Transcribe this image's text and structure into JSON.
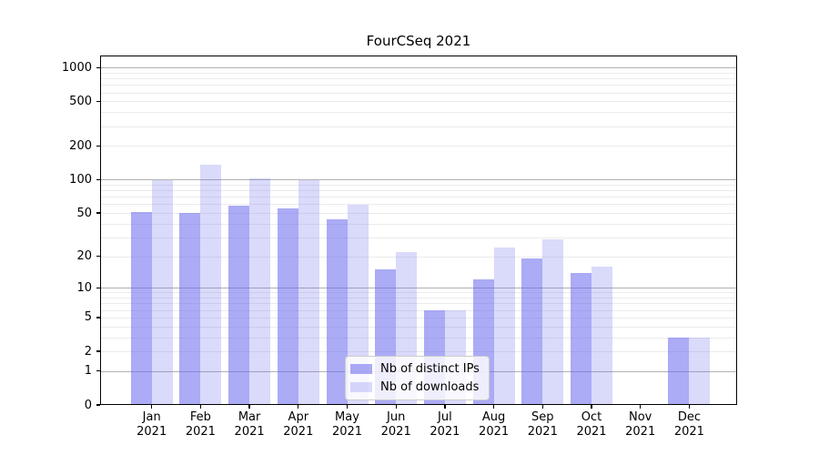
{
  "chart_data": {
    "type": "bar",
    "title": "FourCSeq 2021",
    "categories": [
      "Jan",
      "Feb",
      "Mar",
      "Apr",
      "May",
      "Jun",
      "Jul",
      "Aug",
      "Sep",
      "Oct",
      "Nov",
      "Dec"
    ],
    "category_year": "2021",
    "series": [
      {
        "name": "Nb of distinct IPs",
        "color": "rgba(102,102,238,0.55)",
        "values": [
          51,
          50,
          58,
          55,
          44,
          15,
          6,
          12,
          19,
          14,
          0,
          3
        ]
      },
      {
        "name": "Nb of downloads",
        "color": "rgba(102,102,238,0.24)",
        "values": [
          98,
          136,
          103,
          98,
          59,
          22,
          6,
          24,
          29,
          16,
          0,
          3
        ]
      }
    ],
    "yscale": "log1p",
    "ylim": [
      0,
      1281
    ],
    "yticks": [
      0,
      1,
      2,
      5,
      10,
      20,
      50,
      100,
      200,
      500,
      1000
    ],
    "major_gridlines": [
      1,
      10,
      100,
      1000
    ],
    "minor_gridlines": [
      2,
      3,
      4,
      5,
      6,
      7,
      8,
      9,
      20,
      30,
      40,
      50,
      60,
      70,
      80,
      90,
      200,
      300,
      400,
      500,
      600,
      700,
      800,
      900
    ],
    "grid": "on",
    "legend_position": "lower-center-inside",
    "colors": {
      "bar_base": "#6666ee",
      "major_grid": "#b1b1b1",
      "minor_grid": "#ebebeb",
      "axis": "#000000",
      "legend_border": "#cccccc"
    }
  }
}
